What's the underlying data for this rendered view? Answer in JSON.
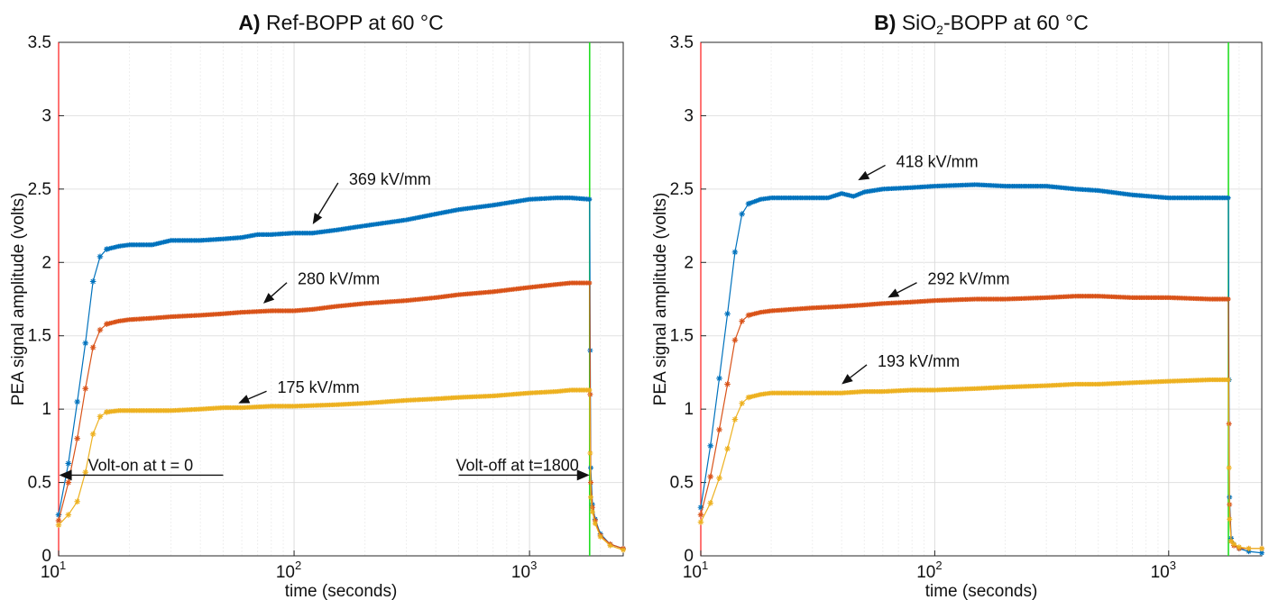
{
  "chart_data": [
    {
      "type": "line",
      "panel": "A",
      "title_bold": "A)",
      "title": "Ref-BOPP at 60 °C",
      "xlabel": "time (seconds)",
      "ylabel": "PEA signal amplitude (volts)",
      "xscale": "log",
      "xlim": [
        10,
        2500
      ],
      "ylim": [
        0,
        3.5
      ],
      "x_ticks": [
        {
          "base": "10",
          "exp": "1"
        },
        {
          "base": "10",
          "exp": "2"
        },
        {
          "base": "10",
          "exp": "3"
        }
      ],
      "y_ticks": [
        "0",
        "0.5",
        "1",
        "1.5",
        "2",
        "2.5",
        "3",
        "3.5"
      ],
      "y_tick_values": [
        0,
        0.5,
        1,
        1.5,
        2,
        2.5,
        3,
        3.5
      ],
      "grid": true,
      "volt_on_line_x": 10,
      "volt_off_line_x": 1800,
      "series": [
        {
          "color": "#0072BD",
          "points": [
            [
              10,
              0.28
            ],
            [
              11,
              0.63
            ],
            [
              12,
              1.05
            ],
            [
              13,
              1.45
            ],
            [
              14,
              1.87
            ],
            [
              15,
              2.04
            ],
            [
              16,
              2.09
            ],
            [
              18,
              2.11
            ],
            [
              20,
              2.12
            ],
            [
              25,
              2.12
            ],
            [
              30,
              2.15
            ],
            [
              40,
              2.15
            ],
            [
              50,
              2.16
            ],
            [
              60,
              2.17
            ],
            [
              70,
              2.19
            ],
            [
              80,
              2.19
            ],
            [
              100,
              2.2
            ],
            [
              120,
              2.2
            ],
            [
              150,
              2.22
            ],
            [
              200,
              2.25
            ],
            [
              300,
              2.29
            ],
            [
              400,
              2.33
            ],
            [
              500,
              2.36
            ],
            [
              700,
              2.39
            ],
            [
              1000,
              2.43
            ],
            [
              1300,
              2.44
            ],
            [
              1500,
              2.44
            ],
            [
              1800,
              2.43
            ],
            [
              1810,
              1.4
            ],
            [
              1820,
              0.6
            ],
            [
              1850,
              0.35
            ],
            [
              1900,
              0.25
            ],
            [
              2000,
              0.15
            ],
            [
              2200,
              0.08
            ],
            [
              2500,
              0.05
            ]
          ]
        },
        {
          "color": "#D95319",
          "points": [
            [
              10,
              0.24
            ],
            [
              11,
              0.5
            ],
            [
              12,
              0.8
            ],
            [
              13,
              1.14
            ],
            [
              14,
              1.42
            ],
            [
              15,
              1.54
            ],
            [
              16,
              1.58
            ],
            [
              18,
              1.6
            ],
            [
              20,
              1.61
            ],
            [
              25,
              1.62
            ],
            [
              30,
              1.63
            ],
            [
              40,
              1.64
            ],
            [
              50,
              1.65
            ],
            [
              60,
              1.66
            ],
            [
              80,
              1.67
            ],
            [
              100,
              1.67
            ],
            [
              120,
              1.68
            ],
            [
              150,
              1.7
            ],
            [
              200,
              1.72
            ],
            [
              300,
              1.74
            ],
            [
              400,
              1.76
            ],
            [
              500,
              1.78
            ],
            [
              700,
              1.8
            ],
            [
              1000,
              1.83
            ],
            [
              1300,
              1.85
            ],
            [
              1500,
              1.86
            ],
            [
              1800,
              1.86
            ],
            [
              1810,
              1.1
            ],
            [
              1820,
              0.5
            ],
            [
              1850,
              0.33
            ],
            [
              1900,
              0.24
            ],
            [
              2000,
              0.14
            ],
            [
              2200,
              0.08
            ],
            [
              2500,
              0.05
            ]
          ]
        },
        {
          "color": "#EDB120",
          "points": [
            [
              10,
              0.21
            ],
            [
              11,
              0.28
            ],
            [
              12,
              0.37
            ],
            [
              13,
              0.57
            ],
            [
              14,
              0.83
            ],
            [
              15,
              0.95
            ],
            [
              16,
              0.98
            ],
            [
              18,
              0.99
            ],
            [
              20,
              0.99
            ],
            [
              25,
              0.99
            ],
            [
              30,
              0.99
            ],
            [
              40,
              1.0
            ],
            [
              50,
              1.01
            ],
            [
              60,
              1.01
            ],
            [
              80,
              1.02
            ],
            [
              100,
              1.02
            ],
            [
              150,
              1.03
            ],
            [
              200,
              1.04
            ],
            [
              300,
              1.06
            ],
            [
              400,
              1.07
            ],
            [
              500,
              1.08
            ],
            [
              700,
              1.09
            ],
            [
              1000,
              1.11
            ],
            [
              1300,
              1.12
            ],
            [
              1500,
              1.13
            ],
            [
              1800,
              1.13
            ],
            [
              1810,
              0.7
            ],
            [
              1820,
              0.4
            ],
            [
              1850,
              0.3
            ],
            [
              1900,
              0.22
            ],
            [
              2000,
              0.13
            ],
            [
              2200,
              0.07
            ],
            [
              2500,
              0.04
            ]
          ]
        }
      ],
      "annotations": [
        {
          "text": "369 kV/mm",
          "text_x": 165,
          "text_y": 2.53,
          "arrow_x": 120,
          "arrow_y": 2.26
        },
        {
          "text": "280 kV/mm",
          "text_x": 100,
          "text_y": 1.85,
          "arrow_x": 74,
          "arrow_y": 1.72
        },
        {
          "text": "175 kV/mm",
          "text_x": 82,
          "text_y": 1.11,
          "arrow_x": 58,
          "arrow_y": 1.04
        }
      ],
      "arrow_notes": [
        {
          "text": "Volt-on at t = 0",
          "direction": "left",
          "x_from": 50,
          "x_to": 10.05,
          "y": 0.55
        },
        {
          "text": "Volt-off at t=1800",
          "direction": "right",
          "x_from": 500,
          "x_to": 1800,
          "y": 0.55
        }
      ]
    },
    {
      "type": "line",
      "panel": "B",
      "title_bold": "B)",
      "title": "SiO₂-BOPP at 60 °C",
      "xlabel": "time (seconds)",
      "ylabel": "PEA signal amplitude (volts)",
      "xscale": "log",
      "xlim": [
        10,
        2500
      ],
      "ylim": [
        0,
        3.5
      ],
      "x_ticks": [
        {
          "base": "10",
          "exp": "1"
        },
        {
          "base": "10",
          "exp": "2"
        },
        {
          "base": "10",
          "exp": "3"
        }
      ],
      "y_ticks": [
        "0",
        "0.5",
        "1",
        "1.5",
        "2",
        "2.5",
        "3",
        "3.5"
      ],
      "y_tick_values": [
        0,
        0.5,
        1,
        1.5,
        2,
        2.5,
        3,
        3.5
      ],
      "grid": true,
      "volt_on_line_x": 10,
      "volt_off_line_x": 1800,
      "series": [
        {
          "color": "#0072BD",
          "points": [
            [
              10,
              0.33
            ],
            [
              11,
              0.75
            ],
            [
              12,
              1.21
            ],
            [
              13,
              1.65
            ],
            [
              14,
              2.07
            ],
            [
              15,
              2.33
            ],
            [
              16,
              2.4
            ],
            [
              18,
              2.43
            ],
            [
              20,
              2.44
            ],
            [
              30,
              2.44
            ],
            [
              35,
              2.44
            ],
            [
              40,
              2.47
            ],
            [
              45,
              2.45
            ],
            [
              50,
              2.48
            ],
            [
              60,
              2.5
            ],
            [
              80,
              2.51
            ],
            [
              100,
              2.52
            ],
            [
              150,
              2.53
            ],
            [
              200,
              2.52
            ],
            [
              300,
              2.52
            ],
            [
              400,
              2.5
            ],
            [
              500,
              2.49
            ],
            [
              700,
              2.46
            ],
            [
              1000,
              2.44
            ],
            [
              1500,
              2.44
            ],
            [
              1800,
              2.44
            ],
            [
              1810,
              1.2
            ],
            [
              1820,
              0.4
            ],
            [
              1850,
              0.12
            ],
            [
              1900,
              0.08
            ],
            [
              2000,
              0.05
            ],
            [
              2200,
              0.03
            ],
            [
              2500,
              0.02
            ]
          ]
        },
        {
          "color": "#D95319",
          "points": [
            [
              10,
              0.28
            ],
            [
              11,
              0.54
            ],
            [
              12,
              0.86
            ],
            [
              13,
              1.17
            ],
            [
              14,
              1.47
            ],
            [
              15,
              1.6
            ],
            [
              16,
              1.64
            ],
            [
              18,
              1.66
            ],
            [
              20,
              1.67
            ],
            [
              30,
              1.69
            ],
            [
              40,
              1.7
            ],
            [
              50,
              1.71
            ],
            [
              60,
              1.72
            ],
            [
              80,
              1.73
            ],
            [
              100,
              1.74
            ],
            [
              150,
              1.75
            ],
            [
              200,
              1.75
            ],
            [
              300,
              1.76
            ],
            [
              400,
              1.77
            ],
            [
              500,
              1.77
            ],
            [
              700,
              1.76
            ],
            [
              1000,
              1.76
            ],
            [
              1500,
              1.75
            ],
            [
              1800,
              1.75
            ],
            [
              1810,
              0.9
            ],
            [
              1820,
              0.35
            ],
            [
              1850,
              0.1
            ],
            [
              1900,
              0.07
            ],
            [
              2000,
              0.05
            ],
            [
              2200,
              0.05
            ],
            [
              2500,
              0.05
            ]
          ]
        },
        {
          "color": "#EDB120",
          "points": [
            [
              10,
              0.23
            ],
            [
              11,
              0.36
            ],
            [
              12,
              0.53
            ],
            [
              13,
              0.73
            ],
            [
              14,
              0.93
            ],
            [
              15,
              1.04
            ],
            [
              16,
              1.08
            ],
            [
              18,
              1.1
            ],
            [
              20,
              1.11
            ],
            [
              30,
              1.11
            ],
            [
              40,
              1.11
            ],
            [
              50,
              1.12
            ],
            [
              60,
              1.12
            ],
            [
              80,
              1.13
            ],
            [
              100,
              1.13
            ],
            [
              150,
              1.14
            ],
            [
              200,
              1.15
            ],
            [
              300,
              1.16
            ],
            [
              400,
              1.17
            ],
            [
              500,
              1.17
            ],
            [
              700,
              1.18
            ],
            [
              1000,
              1.19
            ],
            [
              1500,
              1.2
            ],
            [
              1800,
              1.2
            ],
            [
              1810,
              0.6
            ],
            [
              1820,
              0.25
            ],
            [
              1850,
              0.1
            ],
            [
              1900,
              0.08
            ],
            [
              2000,
              0.06
            ],
            [
              2200,
              0.05
            ],
            [
              2500,
              0.05
            ]
          ]
        }
      ],
      "annotations": [
        {
          "text": "418 kV/mm",
          "text_x": 66,
          "text_y": 2.65,
          "arrow_x": 47,
          "arrow_y": 2.56
        },
        {
          "text": "292 kV/mm",
          "text_x": 90,
          "text_y": 1.85,
          "arrow_x": 63,
          "arrow_y": 1.76
        },
        {
          "text": "193 kV/mm",
          "text_x": 55,
          "text_y": 1.29,
          "arrow_x": 40,
          "arrow_y": 1.17
        }
      ],
      "arrow_notes": []
    }
  ]
}
